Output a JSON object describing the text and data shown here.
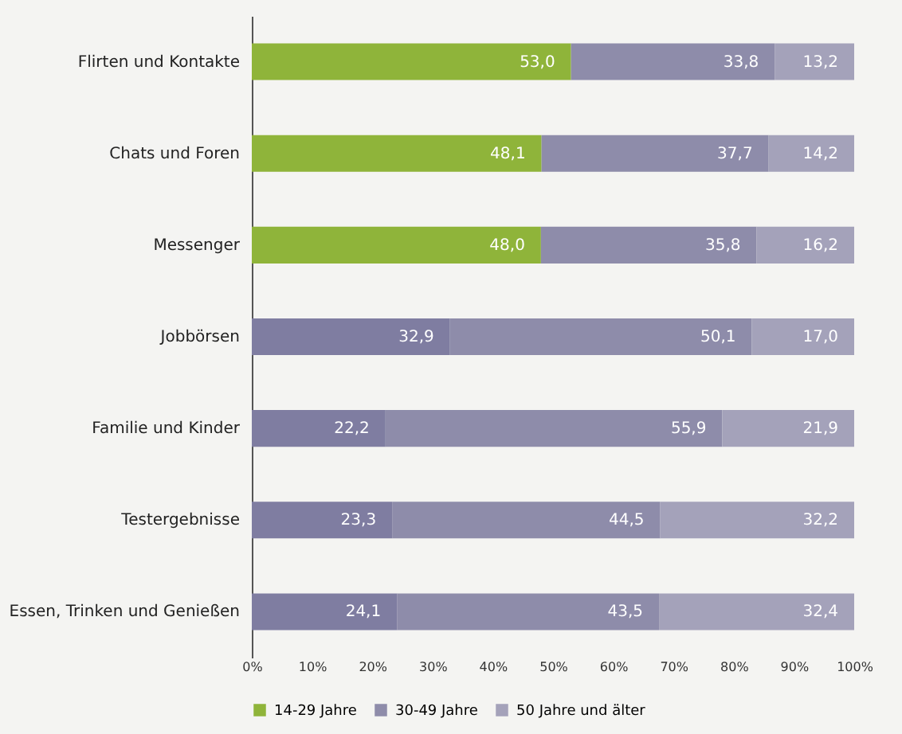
{
  "chart_data": {
    "type": "bar",
    "orientation": "horizontal",
    "stacked": true,
    "categories": [
      "Flirten und Kontakte",
      "Chats und Foren",
      "Messenger",
      "Jobbörsen",
      "Familie und Kinder",
      "Testergebnisse",
      "Essen, Trinken und Genießen"
    ],
    "series": [
      {
        "name": "14-29 Jahre",
        "color": "#8fb43a",
        "colors": [
          "#8fb43a",
          "#8fb43a",
          "#8fb43a",
          "#7f7da1",
          "#7f7da1",
          "#7f7da1",
          "#7f7da1"
        ],
        "values": [
          53.0,
          48.1,
          48.0,
          32.9,
          22.2,
          23.3,
          24.1
        ],
        "value_labels": [
          "53,0",
          "48,1",
          "48,0",
          "32,9",
          "22,2",
          "23,3",
          "24,1"
        ]
      },
      {
        "name": "30-49 Jahre",
        "color": "#8e8caa",
        "values": [
          33.8,
          37.7,
          35.8,
          50.1,
          55.9,
          44.5,
          43.5
        ],
        "value_labels": [
          "33,8",
          "37,7",
          "35,8",
          "50,1",
          "55,9",
          "44,5",
          "43,5"
        ]
      },
      {
        "name": "50 Jahre und älter",
        "color": "#a4a2ba",
        "values": [
          13.2,
          14.2,
          16.2,
          17.0,
          21.9,
          32.2,
          32.4
        ],
        "value_labels": [
          "13,2",
          "14,2",
          "16,2",
          "17,0",
          "21,9",
          "32,2",
          "32,4"
        ]
      }
    ],
    "xlim": [
      0,
      100
    ],
    "xticks": [
      {
        "value": 0,
        "label": "0%"
      },
      {
        "value": 10,
        "label": "10%"
      },
      {
        "value": 20,
        "label": "20%"
      },
      {
        "value": 30,
        "label": "30%"
      },
      {
        "value": 40,
        "label": "40%"
      },
      {
        "value": 50,
        "label": "50%"
      },
      {
        "value": 60,
        "label": "60%"
      },
      {
        "value": 70,
        "label": "70%"
      },
      {
        "value": 80,
        "label": "80%"
      },
      {
        "value": 90,
        "label": "90%"
      },
      {
        "value": 100,
        "label": "100%"
      }
    ],
    "grid": false,
    "legend": "bottom"
  }
}
